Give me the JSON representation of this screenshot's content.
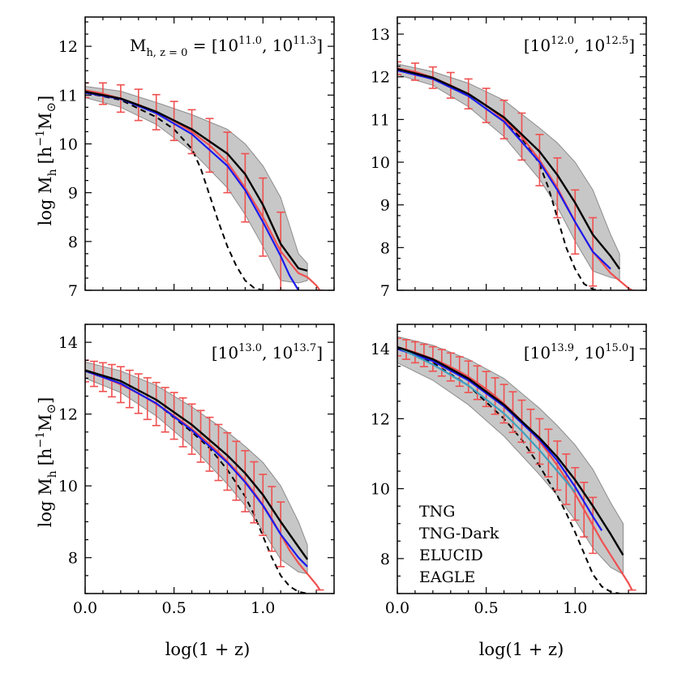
{
  "colors": {
    "TNG": "#f05050",
    "TNG-Dark": "#1a1aee",
    "ELUCID": "#000000",
    "EAGLE": "#40a0c0",
    "band": "#b4b4b4"
  },
  "axis_text": {
    "xlabel": "log(1 + z)",
    "ylabel_main": "log M",
    "ylabel_sub": "h",
    "ylabel_unit_a": "[h",
    "ylabel_unit_exp": "−1",
    "ylabel_unit_b": "M",
    "ylabel_unit_sun": "⊙",
    "ylabel_unit_c": "]"
  },
  "legend": [
    "TNG",
    "TNG-Dark",
    "ELUCID",
    "EAGLE"
  ],
  "chart_data": [
    {
      "type": "line",
      "annotation": {
        "prefix": "M",
        "prefix_sub": "h, z = 0",
        "eq": " = ",
        "lo_exp": "11.0",
        "hi_exp": "11.3"
      },
      "xlim": [
        0,
        1.4
      ],
      "ylim": [
        7,
        12.6
      ],
      "xticks": [
        "",
        "",
        "",
        ""
      ],
      "yticks": [
        "7",
        "8",
        "9",
        "10",
        "11",
        "12"
      ],
      "tng": {
        "x": [
          0.0,
          0.1,
          0.2,
          0.3,
          0.4,
          0.5,
          0.6,
          0.7,
          0.8,
          0.9,
          1.0,
          1.1,
          1.2,
          1.25,
          1.3,
          1.32
        ],
        "y": [
          11.1,
          11.03,
          10.93,
          10.8,
          10.65,
          10.47,
          10.25,
          9.97,
          9.62,
          9.1,
          8.5,
          7.8,
          7.35,
          7.27,
          7.1,
          7.0
        ],
        "err": [
          0.15,
          0.22,
          0.28,
          0.32,
          0.36,
          0.4,
          0.45,
          0.55,
          0.62,
          0.7,
          0.8,
          0.8,
          0,
          0,
          0,
          0
        ]
      },
      "dark": {
        "x": [
          0.0,
          0.2,
          0.4,
          0.6,
          0.8,
          0.9,
          1.0,
          1.1,
          1.15,
          1.2
        ],
        "y": [
          11.05,
          10.92,
          10.63,
          10.2,
          9.55,
          9.05,
          8.4,
          7.7,
          7.3,
          7.0
        ]
      },
      "elucid": {
        "x": [
          0.0,
          0.2,
          0.4,
          0.6,
          0.8,
          0.9,
          1.0,
          1.1,
          1.2,
          1.25
        ],
        "y": [
          11.07,
          10.93,
          10.66,
          10.3,
          9.8,
          9.38,
          8.75,
          7.95,
          7.45,
          7.4
        ]
      },
      "band": {
        "x": [
          0.0,
          0.2,
          0.4,
          0.6,
          0.8,
          0.9,
          1.0,
          1.1,
          1.2,
          1.25
        ],
        "lo": [
          10.95,
          10.75,
          10.4,
          9.85,
          9.1,
          8.55,
          7.9,
          7.2,
          7.15,
          7.2
        ],
        "hi": [
          11.18,
          11.08,
          10.85,
          10.6,
          10.3,
          10.0,
          9.55,
          8.9,
          7.75,
          7.55
        ]
      },
      "dashed": {
        "x": [
          0.0,
          0.2,
          0.4,
          0.5,
          0.6,
          0.65,
          0.7,
          0.75,
          0.8,
          0.85,
          0.9,
          0.95,
          1.0
        ],
        "y": [
          11.05,
          10.9,
          10.55,
          10.3,
          9.9,
          9.5,
          8.95,
          8.4,
          7.9,
          7.5,
          7.2,
          7.05,
          7.0
        ]
      }
    },
    {
      "type": "line",
      "annotation": {
        "prefix": "",
        "prefix_sub": "",
        "eq": "",
        "lo_exp": "12.0",
        "hi_exp": "12.5"
      },
      "xlim": [
        0,
        1.4
      ],
      "ylim": [
        7,
        13.4
      ],
      "xticks": [
        "",
        "",
        "",
        ""
      ],
      "yticks": [
        "7",
        "8",
        "9",
        "10",
        "11",
        "12",
        "13"
      ],
      "tng": {
        "x": [
          0.0,
          0.1,
          0.2,
          0.3,
          0.4,
          0.5,
          0.6,
          0.7,
          0.8,
          0.9,
          1.0,
          1.1,
          1.2,
          1.3,
          1.32
        ],
        "y": [
          12.2,
          12.12,
          11.98,
          11.8,
          11.6,
          11.33,
          11.0,
          10.6,
          10.05,
          9.4,
          8.6,
          7.9,
          7.4,
          7.05,
          7.0
        ],
        "err": [
          0.15,
          0.2,
          0.25,
          0.3,
          0.35,
          0.4,
          0.45,
          0.55,
          0.6,
          0.7,
          0.75,
          0.8,
          0,
          0,
          0
        ]
      },
      "dark": {
        "x": [
          0.0,
          0.2,
          0.4,
          0.6,
          0.8,
          0.9,
          1.0,
          1.1,
          1.2
        ],
        "y": [
          12.15,
          11.95,
          11.55,
          10.95,
          10.0,
          9.35,
          8.6,
          7.9,
          7.5
        ]
      },
      "elucid": {
        "x": [
          0.0,
          0.2,
          0.4,
          0.6,
          0.8,
          0.9,
          1.0,
          1.1,
          1.2,
          1.25
        ],
        "y": [
          12.18,
          11.98,
          11.6,
          11.05,
          10.25,
          9.7,
          9.05,
          8.3,
          7.8,
          7.5
        ]
      },
      "band": {
        "x": [
          0.0,
          0.2,
          0.4,
          0.6,
          0.8,
          0.9,
          1.0,
          1.1,
          1.2,
          1.25
        ],
        "lo": [
          12.05,
          11.8,
          11.3,
          10.6,
          9.6,
          8.95,
          8.15,
          7.45,
          7.3,
          7.25
        ],
        "hi": [
          12.3,
          12.12,
          11.85,
          11.45,
          10.8,
          10.45,
          10.0,
          9.35,
          8.3,
          7.85
        ]
      },
      "dashed": {
        "x": [
          0.0,
          0.2,
          0.4,
          0.6,
          0.7,
          0.75,
          0.8,
          0.85,
          0.9,
          0.95,
          1.0,
          1.05,
          1.1,
          1.15
        ],
        "y": [
          12.15,
          11.95,
          11.55,
          10.95,
          10.55,
          10.3,
          9.95,
          9.4,
          8.7,
          8.0,
          7.5,
          7.15,
          7.02,
          7.0
        ]
      }
    },
    {
      "type": "line",
      "annotation": {
        "prefix": "",
        "prefix_sub": "",
        "eq": "",
        "lo_exp": "13.0",
        "hi_exp": "13.7"
      },
      "xlim": [
        0,
        1.4
      ],
      "ylim": [
        7,
        14.5
      ],
      "xticks": [
        "0.0",
        "0.5",
        "1.0",
        ""
      ],
      "yticks": [
        "8",
        "10",
        "12",
        "14"
      ],
      "tng": {
        "x": [
          0.0,
          0.05,
          0.1,
          0.15,
          0.2,
          0.25,
          0.3,
          0.35,
          0.4,
          0.45,
          0.5,
          0.55,
          0.6,
          0.65,
          0.7,
          0.75,
          0.8,
          0.85,
          0.9,
          0.95,
          1.0,
          1.05,
          1.1,
          1.15,
          1.2,
          1.25,
          1.3,
          1.32
        ],
        "y": [
          13.2,
          13.12,
          13.03,
          12.93,
          12.82,
          12.7,
          12.57,
          12.43,
          12.28,
          12.12,
          11.95,
          11.77,
          11.58,
          11.38,
          11.16,
          10.93,
          10.68,
          10.42,
          10.13,
          9.82,
          9.47,
          9.08,
          8.65,
          8.2,
          7.85,
          7.55,
          7.25,
          7.1
        ],
        "err": [
          0.3,
          0.35,
          0.4,
          0.45,
          0.5,
          0.52,
          0.55,
          0.58,
          0.6,
          0.62,
          0.65,
          0.68,
          0.7,
          0.72,
          0.75,
          0.78,
          0.8,
          0.82,
          0.85,
          0.85,
          0.85,
          0.9,
          0.9,
          0,
          0,
          0,
          0,
          0
        ]
      },
      "dark": {
        "x": [
          0.0,
          0.2,
          0.4,
          0.6,
          0.8,
          0.9,
          1.0,
          1.1,
          1.2,
          1.25
        ],
        "y": [
          13.2,
          12.85,
          12.3,
          11.55,
          10.65,
          10.1,
          9.45,
          8.65,
          8.0,
          7.75
        ]
      },
      "elucid": {
        "x": [
          0.0,
          0.2,
          0.4,
          0.6,
          0.8,
          0.9,
          1.0,
          1.1,
          1.2,
          1.25
        ],
        "y": [
          13.22,
          12.92,
          12.4,
          11.7,
          10.85,
          10.35,
          9.75,
          9.0,
          8.3,
          7.95
        ]
      },
      "band": {
        "x": [
          0.0,
          0.2,
          0.4,
          0.6,
          0.8,
          0.9,
          1.0,
          1.1,
          1.2,
          1.25
        ],
        "lo": [
          13.0,
          12.6,
          11.95,
          11.1,
          10.05,
          9.45,
          8.75,
          7.95,
          7.6,
          7.55
        ],
        "hi": [
          13.45,
          13.2,
          12.8,
          12.2,
          11.5,
          11.1,
          10.65,
          10.0,
          9.0,
          8.35
        ]
      },
      "dashed": {
        "x": [
          0.0,
          0.2,
          0.4,
          0.6,
          0.7,
          0.8,
          0.9,
          0.95,
          1.0,
          1.05,
          1.1,
          1.15,
          1.2,
          1.25
        ],
        "y": [
          13.2,
          12.85,
          12.3,
          11.5,
          11.05,
          10.45,
          9.7,
          9.2,
          8.6,
          8.0,
          7.5,
          7.2,
          7.05,
          7.0
        ]
      }
    },
    {
      "type": "line",
      "annotation": {
        "prefix": "",
        "prefix_sub": "",
        "eq": "",
        "lo_exp": "13.9",
        "hi_exp": "15.0"
      },
      "xlim": [
        0,
        1.4
      ],
      "ylim": [
        7,
        14.7
      ],
      "xticks": [
        "0.0",
        "0.5",
        "1.0",
        ""
      ],
      "yticks": [
        "8",
        "10",
        "12",
        "14"
      ],
      "tng": {
        "x": [
          0.0,
          0.05,
          0.1,
          0.15,
          0.2,
          0.25,
          0.3,
          0.35,
          0.4,
          0.45,
          0.5,
          0.55,
          0.6,
          0.65,
          0.7,
          0.75,
          0.8,
          0.85,
          0.9,
          0.95,
          1.0,
          1.05,
          1.1,
          1.15,
          1.2,
          1.25,
          1.3,
          1.32
        ],
        "y": [
          14.05,
          13.98,
          13.9,
          13.81,
          13.71,
          13.6,
          13.48,
          13.35,
          13.2,
          13.03,
          12.85,
          12.65,
          12.43,
          12.19,
          11.93,
          11.65,
          11.35,
          11.02,
          10.66,
          10.27,
          9.85,
          9.4,
          8.95,
          8.5,
          8.1,
          7.7,
          7.3,
          7.1
        ],
        "err": [
          0.25,
          0.28,
          0.3,
          0.32,
          0.35,
          0.38,
          0.4,
          0.42,
          0.45,
          0.48,
          0.5,
          0.52,
          0.55,
          0.58,
          0.6,
          0.62,
          0.65,
          0.68,
          0.7,
          0.72,
          0.75,
          0.78,
          0.8,
          0,
          0,
          0,
          0,
          0
        ]
      },
      "dark": {
        "x": [
          0.0,
          0.2,
          0.4,
          0.6,
          0.8,
          0.9,
          1.0,
          1.1,
          1.15
        ],
        "y": [
          14.0,
          13.65,
          13.1,
          12.35,
          11.4,
          10.8,
          10.05,
          9.2,
          8.8
        ]
      },
      "eagle": {
        "x": [
          0.0,
          0.2,
          0.4,
          0.6,
          0.7,
          0.8,
          0.9,
          1.0
        ],
        "y": [
          14.05,
          13.55,
          12.95,
          12.15,
          11.65,
          11.1,
          10.5,
          9.9
        ]
      },
      "elucid": {
        "x": [
          0.0,
          0.2,
          0.4,
          0.6,
          0.8,
          0.9,
          1.0,
          1.1,
          1.2,
          1.27
        ],
        "y": [
          14.05,
          13.7,
          13.15,
          12.4,
          11.45,
          10.9,
          10.25,
          9.5,
          8.7,
          8.1
        ]
      },
      "band": {
        "x": [
          0.0,
          0.2,
          0.4,
          0.6,
          0.8,
          0.9,
          1.0,
          1.1,
          1.2,
          1.27
        ],
        "lo": [
          13.6,
          13.1,
          12.4,
          11.5,
          10.4,
          9.8,
          9.1,
          8.3,
          7.75,
          7.55
        ],
        "hi": [
          14.35,
          14.1,
          13.7,
          13.15,
          12.3,
          11.8,
          11.25,
          10.55,
          9.6,
          9.0
        ]
      },
      "dashed": {
        "x": [
          0.0,
          0.2,
          0.4,
          0.6,
          0.7,
          0.8,
          0.9,
          0.95,
          1.0,
          1.05,
          1.1,
          1.15,
          1.2,
          1.25
        ],
        "y": [
          14.05,
          13.6,
          12.95,
          12.0,
          11.4,
          10.65,
          9.8,
          9.3,
          8.75,
          8.15,
          7.55,
          7.2,
          7.05,
          7.0
        ]
      }
    }
  ]
}
